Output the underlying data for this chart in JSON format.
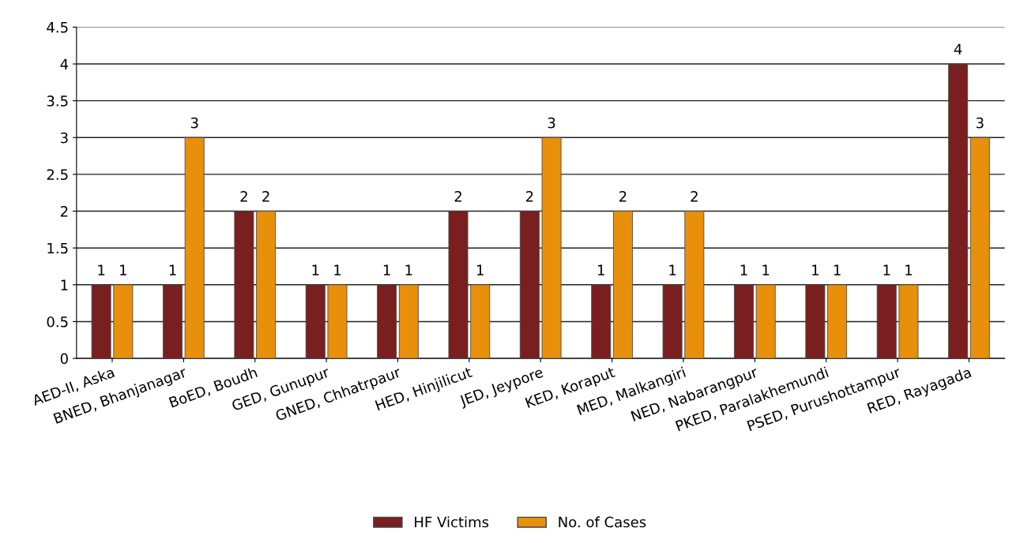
{
  "chart_data": {
    "type": "bar",
    "categories": [
      "AED-II, Aska",
      "BNED, Bhanjanagar",
      "BoED, Boudh",
      "GED, Gunupur",
      "GNED, Chhatrpaur",
      "HED, Hinjilicut",
      "JED, Jeypore",
      "KED, Koraput",
      "MED, Malkangiri",
      "NED, Nabarangpur",
      "PKED, Paralakhemundi",
      "PSED, Purushottampur",
      "RED, Rayagada"
    ],
    "series": [
      {
        "name": "HF Victims",
        "color": "#7a1f1f",
        "values": [
          1,
          1,
          2,
          1,
          1,
          2,
          2,
          1,
          1,
          1,
          1,
          1,
          4
        ]
      },
      {
        "name": "No. of Cases",
        "color": "#e8900c",
        "values": [
          1,
          3,
          2,
          1,
          1,
          1,
          3,
          2,
          2,
          1,
          1,
          1,
          3
        ]
      }
    ],
    "ylim": [
      0,
      4.5
    ],
    "yticks": [
      0,
      0.5,
      1,
      1.5,
      2,
      2.5,
      3,
      3.5,
      4,
      4.5
    ],
    "grid": "y",
    "legend": "bottom",
    "data_labels": true
  }
}
